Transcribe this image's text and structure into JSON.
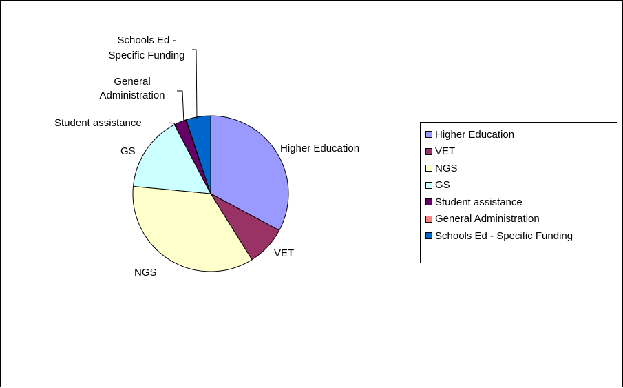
{
  "chart_data": {
    "type": "pie",
    "slices": [
      {
        "label": "Higher Education",
        "value": 32.8,
        "color": "#9999ff",
        "placement": "outside-right"
      },
      {
        "label": "VET",
        "value": 8.3,
        "color": "#993366",
        "placement": "outside-right"
      },
      {
        "label": "NGS",
        "value": 35.4,
        "color": "#ffffcc",
        "placement": "outside-left"
      },
      {
        "label": "GS",
        "value": 15.8,
        "color": "#ccffff",
        "placement": "outside-left"
      },
      {
        "label": "Student assistance",
        "value": 2.5,
        "color": "#660066",
        "placement": "leader"
      },
      {
        "label": "General Administration",
        "value": 0.1,
        "color": "#ff8080",
        "placement": "leader"
      },
      {
        "label": "Schools Ed - Specific Funding",
        "value": 5.1,
        "color": "#0066cc",
        "placement": "leader"
      }
    ],
    "slice_labels": [
      [
        "Higher Education"
      ],
      [
        "VET"
      ],
      [
        "NGS"
      ],
      [
        "GS"
      ],
      [
        "Student assistance"
      ],
      [
        "General",
        "Administration"
      ],
      [
        "Schools Ed -",
        "Specific Funding"
      ]
    ],
    "legend": {
      "position": "right"
    },
    "title": ""
  }
}
